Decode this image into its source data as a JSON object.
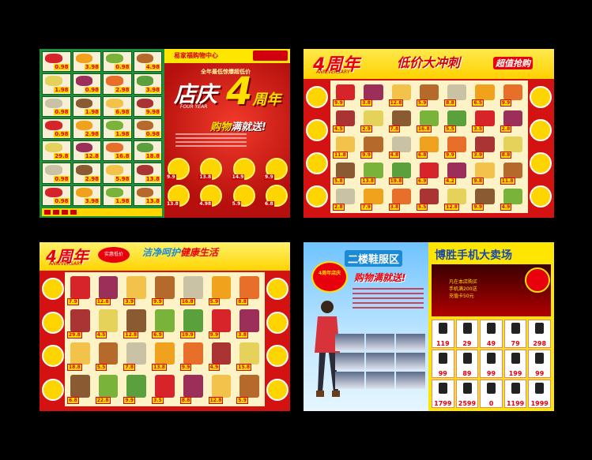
{
  "spread1": {
    "store_name": "易家福购物中心",
    "tagline": "全年最低惊爆超低价",
    "title_main": "店庆",
    "title_four": "4",
    "title_year": "周年",
    "four_year_en": "FOUR YEAR",
    "slogan_a": "购物",
    "slogan_b": "满就送!",
    "produce_prices": [
      "0.98",
      "3.98",
      "0.98",
      "4.98",
      "1.98",
      "0.98",
      "2.98",
      "3.98",
      "0.98",
      "1.98",
      "6.98",
      "9.98",
      "0.98",
      "2.98",
      "1.98",
      "0.98",
      "29.8",
      "12.8",
      "16.8",
      "18.8",
      "0.98",
      "2.98",
      "5.98",
      "13.8",
      "0.98",
      "3.98",
      "1.98",
      "13.8"
    ],
    "product_prices": [
      "9.9",
      "13.8",
      "14.9",
      "9.9",
      "13.8",
      "4.98",
      "5.9",
      "6.8"
    ]
  },
  "spread2": {
    "four": "4周年",
    "anniversary": "ANNIVERSARY",
    "headline": "低价大冲刺",
    "super": "超值抢购",
    "prices": [
      "9.9",
      "3.8",
      "12.8",
      "5.9",
      "8.8",
      "6.5",
      "9.9",
      "4.5",
      "2.9",
      "7.8",
      "16.8",
      "5.5",
      "3.5",
      "2.8",
      "11.8",
      "9.9",
      "4.8",
      "6.8",
      "9.9",
      "3.9",
      "8.8",
      "5.8",
      "13.8",
      "19.8",
      "6.9",
      "4.2",
      "9.8",
      "11.8",
      "2.8",
      "7.9",
      "3.8",
      "5.5",
      "12.8",
      "9.9",
      "4.9"
    ]
  },
  "spread3": {
    "four": "4周年",
    "anniversary": "ANNIVERSARY",
    "mark": "实惠低价",
    "clean_a": "洁净呵护",
    "clean_b": "健康生活",
    "prices": [
      "7.9",
      "12.8",
      "3.9",
      "9.9",
      "16.8",
      "5.9",
      "8.8",
      "29.8",
      "4.5",
      "12.8",
      "6.9",
      "19.9",
      "9.9",
      "3.8",
      "18.8",
      "5.5",
      "7.8",
      "13.8",
      "9.9",
      "4.9",
      "15.8",
      "6.8",
      "22.8",
      "9.9",
      "3.5",
      "8.8",
      "12.8",
      "5.9"
    ]
  },
  "spread4": {
    "shoe_title": "二楼鞋服区",
    "slogan_a": "购物",
    "slogan_b": "满就送!",
    "lantern": "4周年店庆",
    "phone_title": "博胜手机大卖场",
    "concert_lines": [
      "凡在本店购买",
      "手机满200送",
      "充值卡50元"
    ],
    "phone_prices": [
      "119",
      "29",
      "49",
      "79",
      "298",
      "99",
      "89",
      "99",
      "199",
      "99",
      "1799",
      "2599",
      "0",
      "1199",
      "1999"
    ]
  }
}
